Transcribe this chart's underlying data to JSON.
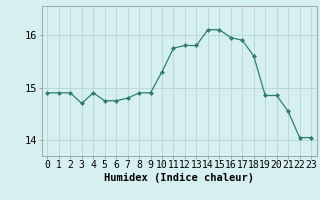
{
  "x": [
    0,
    1,
    2,
    3,
    4,
    5,
    6,
    7,
    8,
    9,
    10,
    11,
    12,
    13,
    14,
    15,
    16,
    17,
    18,
    19,
    20,
    21,
    22,
    23
  ],
  "y": [
    14.9,
    14.9,
    14.9,
    14.7,
    14.9,
    14.75,
    14.75,
    14.8,
    14.9,
    14.9,
    15.3,
    15.75,
    15.8,
    15.8,
    16.1,
    16.1,
    15.95,
    15.9,
    15.6,
    14.85,
    14.85,
    14.55,
    14.05,
    14.05
  ],
  "line_color": "#2e7d6e",
  "marker": "D",
  "marker_size": 2,
  "bg_color": "#d6f0f0",
  "grid_color": "#b8d4d4",
  "xlabel": "Humidex (Indice chaleur)",
  "ylim": [
    13.7,
    16.55
  ],
  "yticks": [
    14,
    15,
    16
  ],
  "xtick_labels": [
    "0",
    "1",
    "2",
    "3",
    "4",
    "5",
    "6",
    "7",
    "8",
    "9",
    "10",
    "11",
    "12",
    "13",
    "14",
    "15",
    "16",
    "17",
    "18",
    "19",
    "20",
    "21",
    "22",
    "23"
  ],
  "xlabel_fontsize": 7.5,
  "tick_fontsize": 7,
  "ytick_fontsize": 7.5
}
